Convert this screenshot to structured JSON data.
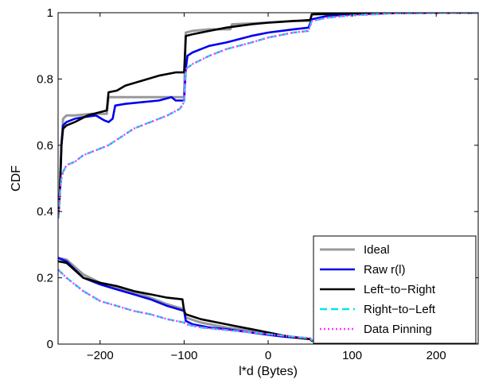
{
  "chart_data": {
    "type": "line",
    "xlabel": "l*d (Bytes)",
    "ylabel": "CDF",
    "xlim": [
      -250,
      250
    ],
    "ylim": [
      0,
      1
    ],
    "x_ticks": [
      -200,
      -100,
      0,
      100,
      200
    ],
    "y_ticks": [
      0,
      0.2,
      0.4,
      0.6,
      0.8,
      1
    ],
    "x_tick_labels": [
      "−200",
      "−100",
      "0",
      "100",
      "200"
    ],
    "y_tick_labels": [
      "0",
      "0.2",
      "0.4",
      "0.6",
      "0.8",
      "1"
    ],
    "legend_position": "lower-right",
    "grid": false,
    "series": [
      {
        "name": "Ideal",
        "color": "#999999",
        "style": "solid",
        "upper": [
          [
            -250,
            0.38
          ],
          [
            -248,
            0.45
          ],
          [
            -246,
            0.6
          ],
          [
            -244,
            0.68
          ],
          [
            -240,
            0.69
          ],
          [
            -230,
            0.69
          ],
          [
            -210,
            0.695
          ],
          [
            -192,
            0.695
          ],
          [
            -190,
            0.745
          ],
          [
            -170,
            0.745
          ],
          [
            -150,
            0.745
          ],
          [
            -120,
            0.745
          ],
          [
            -100,
            0.745
          ],
          [
            -98,
            0.94
          ],
          [
            -90,
            0.945
          ],
          [
            -70,
            0.95
          ],
          [
            -45,
            0.95
          ],
          [
            -43,
            0.965
          ],
          [
            0,
            0.97
          ],
          [
            30,
            0.975
          ],
          [
            50,
            0.975
          ],
          [
            52,
            0.995
          ],
          [
            100,
            0.998
          ],
          [
            150,
            1.0
          ],
          [
            250,
            1.0
          ]
        ],
        "lower": [
          [
            -250,
            0.26
          ],
          [
            -240,
            0.255
          ],
          [
            -220,
            0.21
          ],
          [
            -200,
            0.185
          ],
          [
            -180,
            0.17
          ],
          [
            -150,
            0.15
          ],
          [
            -120,
            0.12
          ],
          [
            -100,
            0.105
          ],
          [
            -98,
            0.08
          ],
          [
            -80,
            0.065
          ],
          [
            -50,
            0.05
          ],
          [
            -20,
            0.04
          ],
          [
            0,
            0.03
          ],
          [
            30,
            0.02
          ],
          [
            50,
            0.015
          ],
          [
            52,
            0.01
          ],
          [
            100,
            0.005
          ],
          [
            150,
            0.002
          ],
          [
            250,
            0.0
          ]
        ]
      },
      {
        "name": "Raw r(l)",
        "color": "#0000ee",
        "style": "solid",
        "upper": [
          [
            -250,
            0.38
          ],
          [
            -248,
            0.45
          ],
          [
            -246,
            0.6
          ],
          [
            -244,
            0.66
          ],
          [
            -240,
            0.67
          ],
          [
            -230,
            0.68
          ],
          [
            -220,
            0.685
          ],
          [
            -205,
            0.69
          ],
          [
            -195,
            0.675
          ],
          [
            -190,
            0.67
          ],
          [
            -185,
            0.68
          ],
          [
            -182,
            0.72
          ],
          [
            -170,
            0.725
          ],
          [
            -150,
            0.73
          ],
          [
            -130,
            0.735
          ],
          [
            -115,
            0.745
          ],
          [
            -110,
            0.735
          ],
          [
            -100,
            0.735
          ],
          [
            -98,
            0.83
          ],
          [
            -96,
            0.87
          ],
          [
            -90,
            0.88
          ],
          [
            -70,
            0.9
          ],
          [
            -50,
            0.91
          ],
          [
            -20,
            0.93
          ],
          [
            0,
            0.94
          ],
          [
            30,
            0.95
          ],
          [
            48,
            0.955
          ],
          [
            52,
            0.98
          ],
          [
            70,
            0.99
          ],
          [
            100,
            0.995
          ],
          [
            150,
            0.999
          ],
          [
            250,
            1.0
          ]
        ],
        "lower": [
          [
            -250,
            0.26
          ],
          [
            -240,
            0.25
          ],
          [
            -220,
            0.2
          ],
          [
            -200,
            0.18
          ],
          [
            -180,
            0.165
          ],
          [
            -160,
            0.15
          ],
          [
            -140,
            0.135
          ],
          [
            -120,
            0.115
          ],
          [
            -100,
            0.1
          ],
          [
            -98,
            0.07
          ],
          [
            -90,
            0.06
          ],
          [
            -70,
            0.05
          ],
          [
            -50,
            0.045
          ],
          [
            -20,
            0.035
          ],
          [
            0,
            0.028
          ],
          [
            20,
            0.022
          ],
          [
            40,
            0.018
          ],
          [
            50,
            0.015
          ],
          [
            52,
            0.012
          ],
          [
            100,
            0.006
          ],
          [
            150,
            0.003
          ],
          [
            250,
            0.0
          ]
        ]
      },
      {
        "name": "Left−to−Right",
        "color": "#000000",
        "style": "solid",
        "upper": [
          [
            -250,
            0.38
          ],
          [
            -248,
            0.45
          ],
          [
            -246,
            0.6
          ],
          [
            -244,
            0.65
          ],
          [
            -240,
            0.66
          ],
          [
            -230,
            0.67
          ],
          [
            -215,
            0.69
          ],
          [
            -200,
            0.7
          ],
          [
            -192,
            0.705
          ],
          [
            -190,
            0.76
          ],
          [
            -180,
            0.765
          ],
          [
            -170,
            0.78
          ],
          [
            -150,
            0.795
          ],
          [
            -130,
            0.81
          ],
          [
            -110,
            0.82
          ],
          [
            -100,
            0.82
          ],
          [
            -98,
            0.93
          ],
          [
            -90,
            0.935
          ],
          [
            -70,
            0.945
          ],
          [
            -50,
            0.955
          ],
          [
            -20,
            0.965
          ],
          [
            0,
            0.97
          ],
          [
            30,
            0.975
          ],
          [
            50,
            0.978
          ],
          [
            52,
            0.995
          ],
          [
            100,
            0.998
          ],
          [
            150,
            1.0
          ],
          [
            250,
            1.0
          ]
        ],
        "lower": [
          [
            -250,
            0.25
          ],
          [
            -240,
            0.245
          ],
          [
            -220,
            0.2
          ],
          [
            -200,
            0.185
          ],
          [
            -180,
            0.175
          ],
          [
            -160,
            0.16
          ],
          [
            -140,
            0.15
          ],
          [
            -120,
            0.14
          ],
          [
            -102,
            0.135
          ],
          [
            -100,
            0.1
          ],
          [
            -98,
            0.09
          ],
          [
            -80,
            0.075
          ],
          [
            -60,
            0.065
          ],
          [
            -40,
            0.055
          ],
          [
            -20,
            0.045
          ],
          [
            0,
            0.035
          ],
          [
            20,
            0.025
          ],
          [
            40,
            0.018
          ],
          [
            50,
            0.015
          ],
          [
            52,
            0.01
          ],
          [
            100,
            0.005
          ],
          [
            150,
            0.002
          ],
          [
            250,
            0.0
          ]
        ]
      },
      {
        "name": "Right−to−Left",
        "color": "#00e5ee",
        "style": "dashed",
        "upper": [
          [
            -250,
            0.38
          ],
          [
            -248,
            0.45
          ],
          [
            -246,
            0.5
          ],
          [
            -244,
            0.52
          ],
          [
            -240,
            0.54
          ],
          [
            -230,
            0.55
          ],
          [
            -220,
            0.57
          ],
          [
            -205,
            0.585
          ],
          [
            -190,
            0.6
          ],
          [
            -175,
            0.625
          ],
          [
            -160,
            0.65
          ],
          [
            -140,
            0.67
          ],
          [
            -120,
            0.69
          ],
          [
            -105,
            0.71
          ],
          [
            -100,
            0.73
          ],
          [
            -98,
            0.83
          ],
          [
            -90,
            0.845
          ],
          [
            -70,
            0.87
          ],
          [
            -50,
            0.89
          ],
          [
            -20,
            0.91
          ],
          [
            0,
            0.925
          ],
          [
            30,
            0.94
          ],
          [
            48,
            0.945
          ],
          [
            52,
            0.975
          ],
          [
            70,
            0.985
          ],
          [
            100,
            0.992
          ],
          [
            150,
            0.998
          ],
          [
            250,
            1.0
          ]
        ],
        "lower": [
          [
            -250,
            0.225
          ],
          [
            -240,
            0.2
          ],
          [
            -220,
            0.16
          ],
          [
            -200,
            0.13
          ],
          [
            -180,
            0.115
          ],
          [
            -160,
            0.1
          ],
          [
            -140,
            0.09
          ],
          [
            -120,
            0.075
          ],
          [
            -100,
            0.065
          ],
          [
            -98,
            0.06
          ],
          [
            -80,
            0.05
          ],
          [
            -60,
            0.045
          ],
          [
            -40,
            0.04
          ],
          [
            -20,
            0.035
          ],
          [
            0,
            0.03
          ],
          [
            20,
            0.025
          ],
          [
            40,
            0.02
          ],
          [
            50,
            0.018
          ],
          [
            52,
            0.012
          ],
          [
            100,
            0.006
          ],
          [
            150,
            0.003
          ],
          [
            250,
            0.0
          ]
        ]
      },
      {
        "name": "Data Pinning",
        "color": "#ff33ff",
        "style": "dotted",
        "upper": [
          [
            -250,
            0.38
          ],
          [
            -248,
            0.45
          ],
          [
            -246,
            0.5
          ],
          [
            -244,
            0.52
          ],
          [
            -240,
            0.54
          ],
          [
            -230,
            0.55
          ],
          [
            -220,
            0.57
          ],
          [
            -205,
            0.585
          ],
          [
            -190,
            0.6
          ],
          [
            -175,
            0.625
          ],
          [
            -160,
            0.65
          ],
          [
            -140,
            0.67
          ],
          [
            -120,
            0.69
          ],
          [
            -105,
            0.71
          ],
          [
            -100,
            0.73
          ],
          [
            -98,
            0.83
          ],
          [
            -90,
            0.845
          ],
          [
            -70,
            0.87
          ],
          [
            -50,
            0.89
          ],
          [
            -20,
            0.91
          ],
          [
            0,
            0.925
          ],
          [
            30,
            0.94
          ],
          [
            48,
            0.945
          ],
          [
            52,
            0.975
          ],
          [
            70,
            0.985
          ],
          [
            100,
            0.992
          ],
          [
            150,
            0.998
          ],
          [
            250,
            1.0
          ]
        ],
        "lower": [
          [
            -250,
            0.225
          ],
          [
            -240,
            0.2
          ],
          [
            -220,
            0.16
          ],
          [
            -200,
            0.13
          ],
          [
            -180,
            0.115
          ],
          [
            -160,
            0.1
          ],
          [
            -140,
            0.09
          ],
          [
            -120,
            0.075
          ],
          [
            -100,
            0.065
          ],
          [
            -98,
            0.06
          ],
          [
            -80,
            0.05
          ],
          [
            -60,
            0.045
          ],
          [
            -40,
            0.04
          ],
          [
            -20,
            0.035
          ],
          [
            0,
            0.03
          ],
          [
            20,
            0.025
          ],
          [
            40,
            0.02
          ],
          [
            50,
            0.018
          ],
          [
            52,
            0.012
          ],
          [
            100,
            0.006
          ],
          [
            150,
            0.003
          ],
          [
            250,
            0.0
          ]
        ]
      }
    ]
  }
}
